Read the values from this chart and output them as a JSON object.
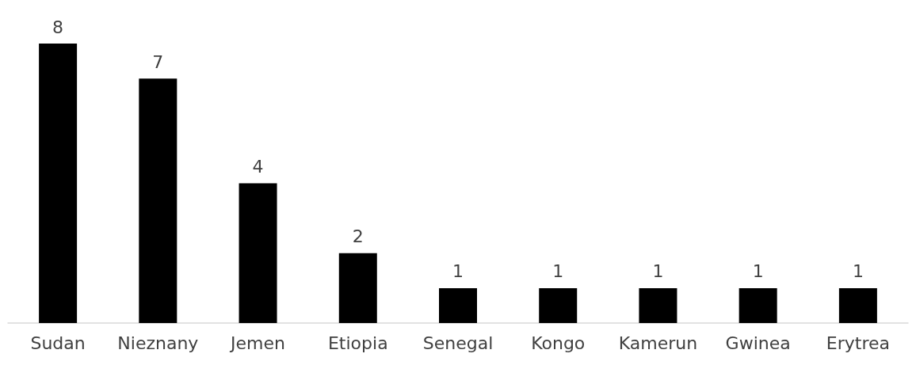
{
  "chart_data": {
    "type": "bar",
    "categories": [
      "Sudan",
      "Nieznany",
      "Jemen",
      "Etiopia",
      "Senegal",
      "Kongo",
      "Kamerun",
      "Gwinea",
      "Erytrea"
    ],
    "values": [
      8,
      7,
      4,
      2,
      1,
      1,
      1,
      1,
      1
    ],
    "color": "#000000",
    "data_labels": true
  }
}
